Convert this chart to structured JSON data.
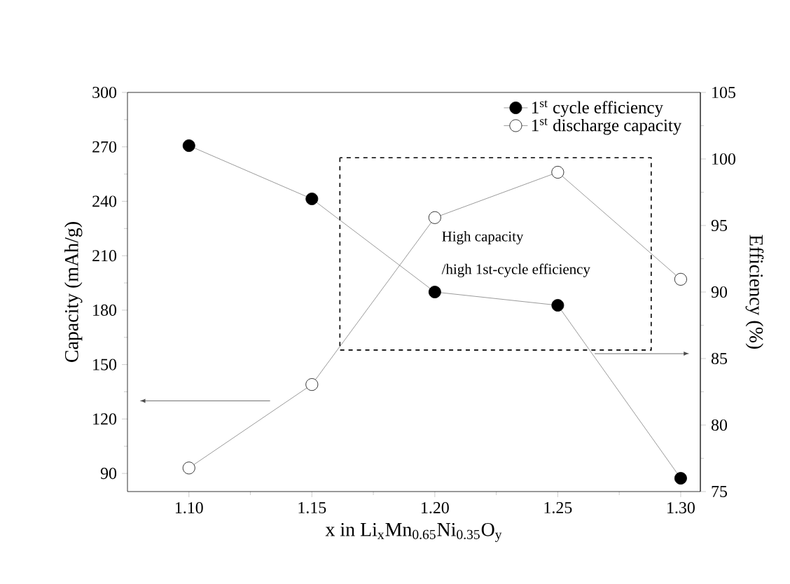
{
  "chart_data": {
    "type": "line",
    "xlabel": "x in Li$_{x}$Mn$_{0.65}$Ni$_{0.35}$O$_{y}$",
    "ylabel": "Capacity (mAh/g)",
    "y2label": "Efficiency (%)",
    "x": [
      1.1,
      1.15,
      1.2,
      1.25,
      1.3
    ],
    "xlim": [
      1.075,
      1.308
    ],
    "xticks": [
      {
        "value": 1.1,
        "label": "1.10"
      },
      {
        "value": 1.15,
        "label": "1.15"
      },
      {
        "value": 1.2,
        "label": "1.20"
      },
      {
        "value": 1.25,
        "label": "1.25"
      },
      {
        "value": 1.3,
        "label": "1.30"
      }
    ],
    "ylim": [
      80,
      300
    ],
    "yticks": [
      90,
      120,
      150,
      180,
      210,
      240,
      270,
      300
    ],
    "y2lim": [
      75,
      105
    ],
    "y2ticks": [
      75,
      80,
      85,
      90,
      95,
      100,
      105
    ],
    "marker": "circle",
    "legend": "top right",
    "annotations": [
      "High capacity",
      "/high 1st-cycle efficiency"
    ],
    "series": [
      {
        "name": "1$^{st}$ cycle efficiency",
        "color": "#000000",
        "axis": "y2",
        "values": [
          101,
          97,
          90,
          89,
          76
        ]
      },
      {
        "name": "1$^{st}$ discharge capacity",
        "color": "#ffffff",
        "values": [
          93,
          139,
          231,
          256,
          197
        ]
      }
    ]
  }
}
